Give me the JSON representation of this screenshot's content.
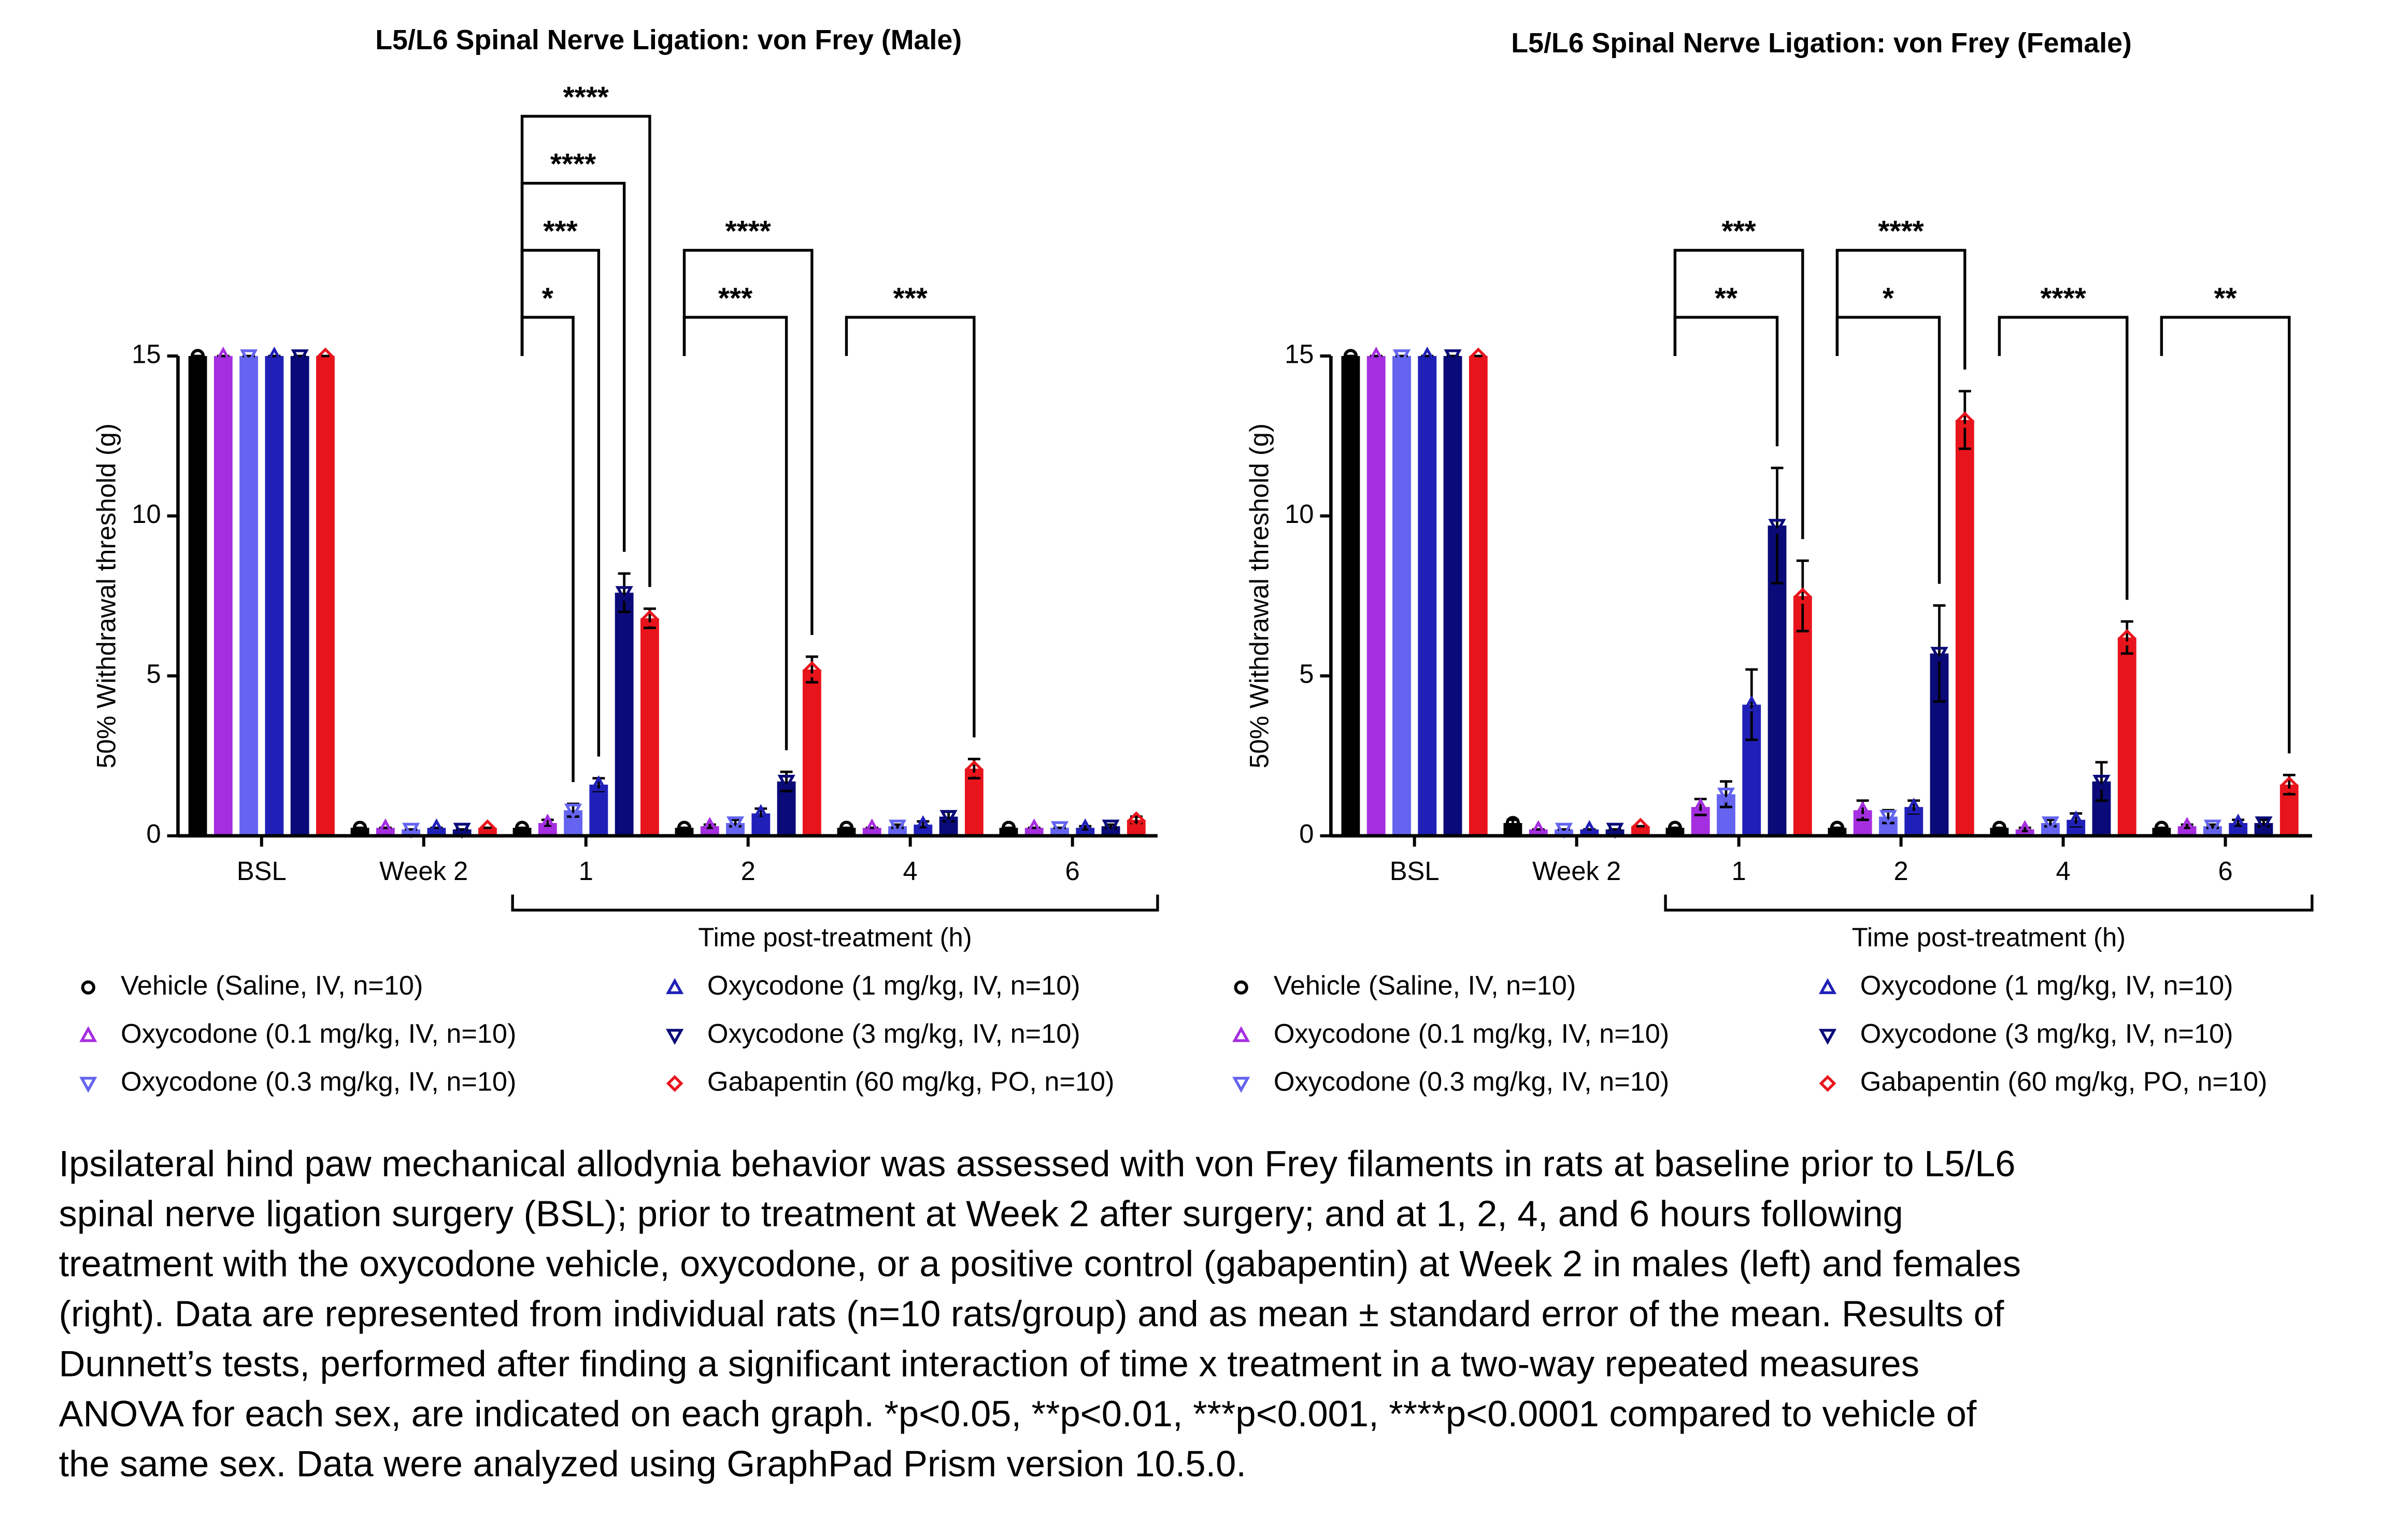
{
  "chart_data": [
    {
      "type": "bar",
      "title": "L5/L6 Spinal Nerve Ligation: von Frey (Male)",
      "ylabel": "50% Withdrawal threshold (g)",
      "xlabel": "Time post-treatment (h)",
      "categories": [
        "BSL",
        "Week 2",
        "1",
        "2",
        "4",
        "6"
      ],
      "ylim": [
        0,
        15
      ],
      "yticks": [
        0,
        5,
        10,
        15
      ],
      "legend": "bottom",
      "series": [
        {
          "name": "Vehicle (Saline, IV, n=10)",
          "color": "#000000",
          "marker": "circle",
          "values": [
            15,
            0.25,
            0.25,
            0.25,
            0.25,
            0.25
          ],
          "errors": [
            0,
            0,
            0,
            0,
            0,
            0
          ]
        },
        {
          "name": "Oxycodone (0.1 mg/kg, IV, n=10)",
          "color": "#a52ee0",
          "marker": "triangle-up",
          "values": [
            15,
            0.25,
            0.4,
            0.3,
            0.25,
            0.25
          ],
          "errors": [
            0,
            0,
            0.1,
            0.05,
            0,
            0
          ]
        },
        {
          "name": "Oxycodone (0.3 mg/kg, IV, n=10)",
          "color": "#6464f0",
          "marker": "triangle-down",
          "values": [
            15,
            0.2,
            0.8,
            0.4,
            0.3,
            0.25
          ],
          "errors": [
            0,
            0,
            0.2,
            0.1,
            0.05,
            0
          ]
        },
        {
          "name": "Oxycodone (1 mg/kg, IV, n=10)",
          "color": "#2020b8",
          "marker": "triangle-up",
          "values": [
            15,
            0.25,
            1.6,
            0.7,
            0.35,
            0.25
          ],
          "errors": [
            0,
            0,
            0.2,
            0.15,
            0.1,
            0.05
          ]
        },
        {
          "name": "Oxycodone (3 mg/kg, IV, n=10)",
          "color": "#0a0a78",
          "marker": "triangle-down",
          "values": [
            15,
            0.2,
            7.6,
            1.7,
            0.6,
            0.3
          ],
          "errors": [
            0,
            0,
            0.6,
            0.3,
            0.15,
            0.05
          ]
        },
        {
          "name": "Gabapentin (60 mg/kg, PO, n=10)",
          "color": "#e8141c",
          "marker": "diamond",
          "values": [
            15,
            0.25,
            6.8,
            5.2,
            2.1,
            0.5
          ],
          "errors": [
            0,
            0,
            0.3,
            0.4,
            0.3,
            0.1
          ]
        }
      ],
      "annotations": [
        {
          "text": "*",
          "category": "1",
          "series": "Oxycodone (0.3 mg/kg, IV, n=10)"
        },
        {
          "text": "***",
          "category": "1",
          "series": "Oxycodone (1 mg/kg, IV, n=10)"
        },
        {
          "text": "****",
          "category": "1",
          "series": "Oxycodone (3 mg/kg, IV, n=10)"
        },
        {
          "text": "****",
          "category": "1",
          "series": "Gabapentin (60 mg/kg, PO, n=10)"
        },
        {
          "text": "***",
          "category": "2",
          "series": "Oxycodone (3 mg/kg, IV, n=10)"
        },
        {
          "text": "****",
          "category": "2",
          "series": "Gabapentin (60 mg/kg, PO, n=10)"
        },
        {
          "text": "***",
          "category": "4",
          "series": "Gabapentin (60 mg/kg, PO, n=10)"
        }
      ]
    },
    {
      "type": "bar",
      "title": "L5/L6 Spinal Nerve Ligation: von Frey (Female)",
      "ylabel": "50% Withdrawal threshold (g)",
      "xlabel": "Time post-treatment (h)",
      "categories": [
        "BSL",
        "Week 2",
        "1",
        "2",
        "4",
        "6"
      ],
      "ylim": [
        0,
        15
      ],
      "yticks": [
        0,
        5,
        10,
        15
      ],
      "legend": "bottom",
      "series": [
        {
          "name": "Vehicle (Saline, IV, n=10)",
          "color": "#000000",
          "marker": "circle",
          "values": [
            15,
            0.4,
            0.25,
            0.25,
            0.25,
            0.25
          ],
          "errors": [
            0,
            0.1,
            0,
            0,
            0,
            0
          ]
        },
        {
          "name": "Oxycodone (0.1 mg/kg, IV, n=10)",
          "color": "#a52ee0",
          "marker": "triangle-up",
          "values": [
            15,
            0.2,
            0.9,
            0.8,
            0.2,
            0.3
          ],
          "errors": [
            0,
            0,
            0.25,
            0.3,
            0.05,
            0.05
          ]
        },
        {
          "name": "Oxycodone (0.3 mg/kg, IV, n=10)",
          "color": "#6464f0",
          "marker": "triangle-down",
          "values": [
            15,
            0.2,
            1.3,
            0.6,
            0.4,
            0.3
          ],
          "errors": [
            0,
            0,
            0.4,
            0.2,
            0.1,
            0.05
          ]
        },
        {
          "name": "Oxycodone (1 mg/kg, IV, n=10)",
          "color": "#2020b8",
          "marker": "triangle-up",
          "values": [
            15,
            0.2,
            4.1,
            0.9,
            0.5,
            0.4
          ],
          "errors": [
            0,
            0,
            1.1,
            0.2,
            0.2,
            0.1
          ]
        },
        {
          "name": "Oxycodone (3 mg/kg, IV, n=10)",
          "color": "#0a0a78",
          "marker": "triangle-down",
          "values": [
            15,
            0.2,
            9.7,
            5.7,
            1.7,
            0.4
          ],
          "errors": [
            0,
            0,
            1.8,
            1.5,
            0.6,
            0.1
          ]
        },
        {
          "name": "Gabapentin (60 mg/kg, PO, n=10)",
          "color": "#e8141c",
          "marker": "diamond",
          "values": [
            15,
            0.3,
            7.5,
            13.0,
            6.2,
            1.6
          ],
          "errors": [
            0,
            0,
            1.1,
            0.9,
            0.5,
            0.3
          ]
        }
      ],
      "annotations": [
        {
          "text": "**",
          "category": "1",
          "series": "Oxycodone (3 mg/kg, IV, n=10)"
        },
        {
          "text": "***",
          "category": "1",
          "series": "Gabapentin (60 mg/kg, PO, n=10)"
        },
        {
          "text": "*",
          "category": "2",
          "series": "Oxycodone (3 mg/kg, IV, n=10)"
        },
        {
          "text": "****",
          "category": "2",
          "series": "Gabapentin (60 mg/kg, PO, n=10)"
        },
        {
          "text": "****",
          "category": "4",
          "series": "Gabapentin (60 mg/kg, PO, n=10)"
        },
        {
          "text": "**",
          "category": "6",
          "series": "Gabapentin (60 mg/kg, PO, n=10)"
        }
      ]
    }
  ],
  "caption": [
    "Ipsilateral hind paw mechanical allodynia behavior was assessed with von Frey filaments in rats at baseline prior to L5/L6",
    "spinal nerve ligation surgery (BSL); prior to treatment at Week 2 after surgery; and at 1, 2, 4, and 6 hours following",
    "treatment with the oxycodone vehicle, oxycodone, or a positive control (gabapentin) at Week 2 in males (left) and females",
    "(right). Data are represented from individual rats (n=10 rats/group) and as mean ± standard error of the mean. Results of",
    "Dunnett’s tests, performed after finding a significant interaction of time x treatment in a two-way repeated measures",
    "ANOVA for each sex, are indicated on each graph. *p<0.05, **p<0.01, ***p<0.001, ****p<0.0001 compared to vehicle of",
    "the same sex. Data were analyzed using GraphPad Prism version 10.5.0."
  ]
}
